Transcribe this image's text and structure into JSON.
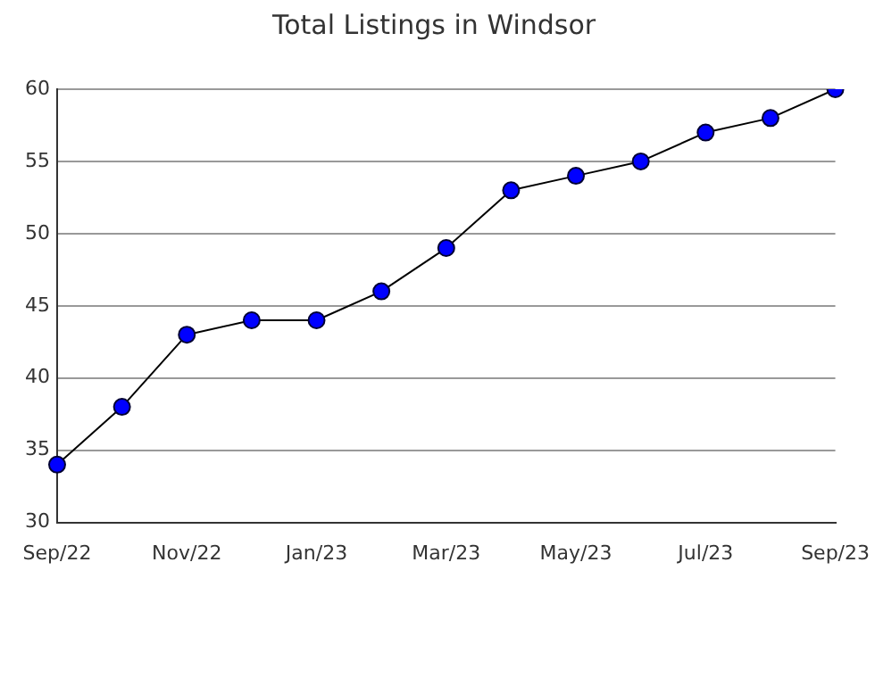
{
  "chart_data": {
    "type": "line",
    "title": "Total Listings in Windsor",
    "categories": [
      "Sep/22",
      null,
      "Nov/22",
      null,
      "Jan/23",
      null,
      "Mar/23",
      null,
      "May/23",
      null,
      "Jul/23",
      null,
      "Sep/23"
    ],
    "series": [
      {
        "color": "#0000ff",
        "values": [
          34,
          38,
          43,
          44,
          44,
          46,
          49,
          53,
          54,
          55,
          57,
          58,
          60
        ]
      }
    ],
    "ylim": [
      30,
      60
    ],
    "yticks": [
      30,
      35,
      40,
      45,
      50,
      55,
      60
    ],
    "grid": "y",
    "marker": "circle",
    "line_style": "solid",
    "legend": false
  }
}
